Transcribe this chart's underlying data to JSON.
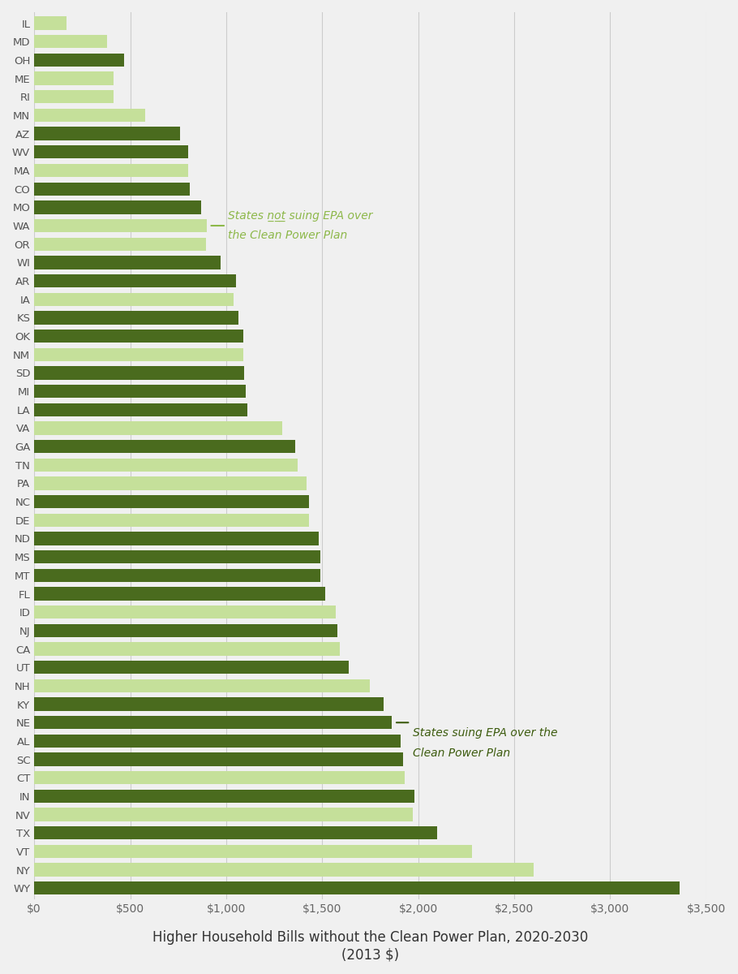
{
  "states": [
    "IL",
    "MD",
    "OH",
    "ME",
    "RI",
    "MN",
    "AZ",
    "WV",
    "MA",
    "CO",
    "MO",
    "WA",
    "OR",
    "WI",
    "AR",
    "IA",
    "KS",
    "OK",
    "NM",
    "SD",
    "MI",
    "LA",
    "VA",
    "GA",
    "TN",
    "PA",
    "NC",
    "DE",
    "ND",
    "MS",
    "MT",
    "FL",
    "ID",
    "NJ",
    "CA",
    "UT",
    "NH",
    "KY",
    "NE",
    "AL",
    "SC",
    "CT",
    "IN",
    "NV",
    "TX",
    "VT",
    "NY",
    "WY"
  ],
  "values": [
    170,
    380,
    470,
    415,
    415,
    580,
    760,
    800,
    800,
    810,
    870,
    900,
    895,
    970,
    1050,
    1040,
    1065,
    1090,
    1090,
    1095,
    1100,
    1110,
    1290,
    1360,
    1370,
    1420,
    1430,
    1430,
    1480,
    1490,
    1490,
    1515,
    1570,
    1580,
    1590,
    1640,
    1750,
    1820,
    1860,
    1910,
    1920,
    1930,
    1980,
    1970,
    2100,
    2280,
    2600,
    3360
  ],
  "colors": [
    "#c5e09a",
    "#c5e09a",
    "#4a6b1e",
    "#c5e09a",
    "#c5e09a",
    "#c5e09a",
    "#4a6b1e",
    "#4a6b1e",
    "#c5e09a",
    "#4a6b1e",
    "#4a6b1e",
    "#c5e09a",
    "#c5e09a",
    "#4a6b1e",
    "#4a6b1e",
    "#c5e09a",
    "#4a6b1e",
    "#4a6b1e",
    "#c5e09a",
    "#4a6b1e",
    "#4a6b1e",
    "#4a6b1e",
    "#c5e09a",
    "#4a6b1e",
    "#c5e09a",
    "#c5e09a",
    "#4a6b1e",
    "#c5e09a",
    "#4a6b1e",
    "#4a6b1e",
    "#4a6b1e",
    "#4a6b1e",
    "#c5e09a",
    "#4a6b1e",
    "#c5e09a",
    "#4a6b1e",
    "#c5e09a",
    "#4a6b1e",
    "#4a6b1e",
    "#4a6b1e",
    "#4a6b1e",
    "#c5e09a",
    "#4a6b1e",
    "#c5e09a",
    "#4a6b1e",
    "#c5e09a",
    "#c5e09a",
    "#4a6b1e"
  ],
  "light_green": "#8db84a",
  "dark_green": "#3d5c0f",
  "light_bar": "#c5e09a",
  "dark_bar": "#4a6b1e",
  "xlabel_line1": "Higher Household Bills without the Clean Power Plan, 2020-2030",
  "xlabel_line2": "(2013 $)",
  "xlim": [
    0,
    3500
  ],
  "xticks": [
    0,
    500,
    1000,
    1500,
    2000,
    2500,
    3000,
    3500
  ],
  "xtick_labels": [
    "$0",
    "$500",
    "$1,000",
    "$1,500",
    "$2,000",
    "$2,500",
    "$3,000",
    "$3,500"
  ],
  "background_color": "#f0f0f0",
  "bar_height": 0.72,
  "fig_width": 9.1,
  "fig_height": 12.0
}
